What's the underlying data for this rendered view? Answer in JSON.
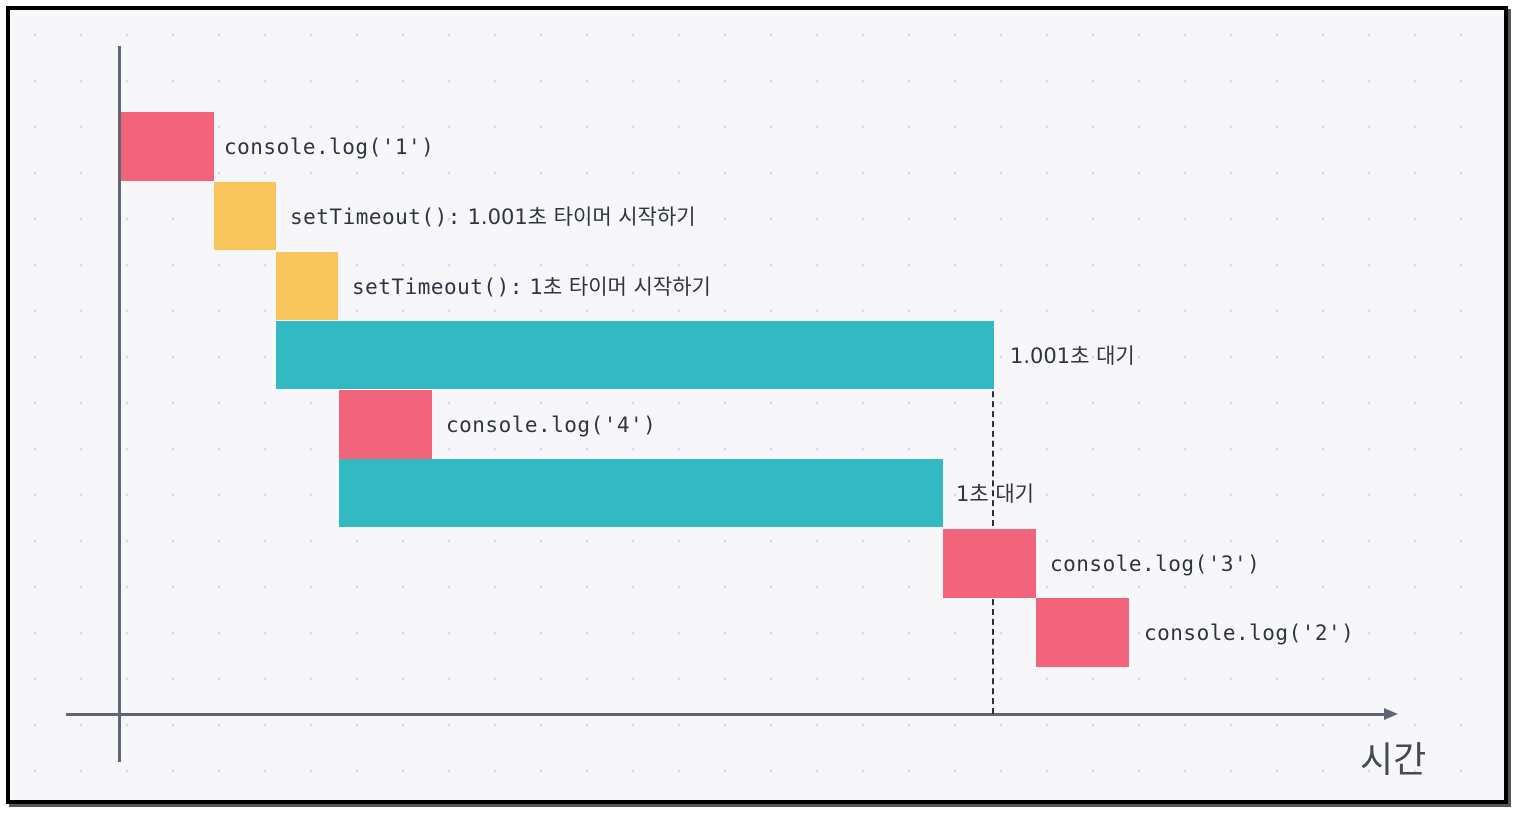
{
  "colors": {
    "sync_task": "#f2637c",
    "timer_start": "#f9c65d",
    "waiting": "#32b9c2",
    "axis": "#5f6673",
    "text": "#2f3540"
  },
  "blocks": [
    {
      "id": "log-1",
      "kind": "sync_task",
      "label": "console.log('1')"
    },
    {
      "id": "timer-1001",
      "kind": "timer_start",
      "code": "setTimeout():",
      "label": "1.001초 타이머 시작하기"
    },
    {
      "id": "timer-1000",
      "kind": "timer_start",
      "code": "setTimeout():",
      "label": "1초 타이머 시작하기"
    },
    {
      "id": "wait-1001",
      "kind": "waiting",
      "label": "1.001초 대기"
    },
    {
      "id": "log-4",
      "kind": "sync_task",
      "label": "console.log('4')"
    },
    {
      "id": "wait-1000",
      "kind": "waiting",
      "label": "1초 대기"
    },
    {
      "id": "log-3",
      "kind": "sync_task",
      "label": "console.log('3')"
    },
    {
      "id": "log-2",
      "kind": "sync_task",
      "label": "console.log('2')"
    }
  ],
  "axis": {
    "x_label": "시간"
  }
}
